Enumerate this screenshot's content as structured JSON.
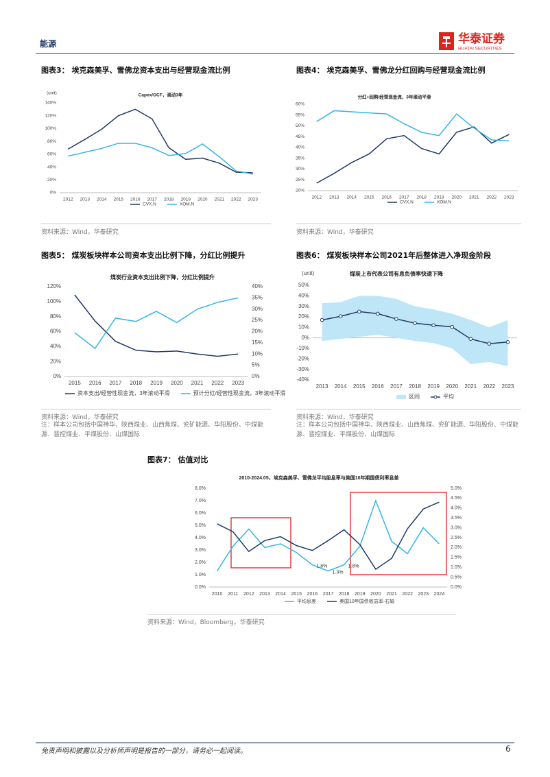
{
  "header": {
    "section": "能源",
    "logo_cn": "华泰证券",
    "logo_en": "HUATAI SECURITIES"
  },
  "figures": [
    {
      "caption": "图表3： 埃克森美孚、雪佛龙资本支出与经营现金流比例",
      "source": "资料来源：Wind，华泰研究",
      "chart": {
        "type": "line",
        "title": "Capex/OCF，滚动3年",
        "unit": "(unit)",
        "legend": "bottom",
        "categories": [
          "2012",
          "2013",
          "2014",
          "2015",
          "2016",
          "2017",
          "2018",
          "2019",
          "2020",
          "2021",
          "2022",
          "2023"
        ],
        "ylim": [
          0,
          140
        ],
        "yticks": [
          {
            "value": 0,
            "label": "0%"
          },
          {
            "value": 20,
            "label": "20%"
          },
          {
            "value": 40,
            "label": "40%"
          },
          {
            "value": 60,
            "label": "60%"
          },
          {
            "value": 80,
            "label": "80%"
          },
          {
            "value": 100,
            "label": "100%"
          },
          {
            "value": 120,
            "label": "120%"
          },
          {
            "value": 140,
            "label": "140%"
          }
        ],
        "series": [
          {
            "name": "CVX.N",
            "color": "#1f3864",
            "values": [
              68,
              83,
              99,
              120,
              130,
              115,
              70,
              52,
              54,
              46,
              32,
              31
            ]
          },
          {
            "name": "XOM.N",
            "color": "#33b5e5",
            "values": [
              57,
              63,
              69,
              77,
              77,
              70,
              58,
              61,
              76,
              56,
              34,
              29
            ]
          }
        ]
      }
    },
    {
      "caption": "图表4： 埃克森美孚、雪佛龙分红回购与经营现金流比例",
      "source": "资料来源：Wind，华泰研究",
      "chart": {
        "type": "line",
        "title": "分红+回购/经营现金流，3年滚动平滑",
        "legend": "bottom",
        "categories": [
          "2012",
          "2013",
          "2014",
          "2015",
          "2016",
          "2017",
          "2018",
          "2019",
          "2020",
          "2021",
          "2022",
          "2023"
        ],
        "ylim": [
          20,
          60
        ],
        "yticks": [
          {
            "value": 20,
            "label": "20%"
          },
          {
            "value": 25,
            "label": "25%"
          },
          {
            "value": 30,
            "label": "30%"
          },
          {
            "value": 35,
            "label": "35%"
          },
          {
            "value": 40,
            "label": "40%"
          },
          {
            "value": 45,
            "label": "45%"
          },
          {
            "value": 50,
            "label": "50%"
          },
          {
            "value": 55,
            "label": "55%"
          },
          {
            "value": 60,
            "label": "60%"
          }
        ],
        "series": [
          {
            "name": "CVX.N",
            "color": "#1f3864",
            "values": [
              23.5,
              28,
              33,
              37,
              44,
              45.5,
              39.5,
              37,
              47,
              49.5,
              42,
              46
            ]
          },
          {
            "name": "XOM.N",
            "color": "#33b5e5",
            "values": [
              52,
              57,
              56.5,
              56,
              55.5,
              51,
              47,
              45.5,
              55.5,
              49,
              43.5,
              43
            ]
          }
        ]
      }
    },
    {
      "caption": "图表5： 煤炭板块样本公司资本支出比例下降，分红比例提升",
      "source": "资料来源：Wind，华泰研究",
      "note": "注：样本公司包括中国神华、陕西煤业、山西焦煤、兖矿能源、华阳股份、中煤能源、晋控煤业、平煤股份、山煤国际",
      "chart": {
        "type": "line",
        "title": "煤炭行业资本支出比例下降，分红比例提升",
        "legend": "bottom",
        "categories": [
          "2015",
          "2016",
          "2017",
          "2018",
          "2019",
          "2020",
          "2021",
          "2022",
          "2023"
        ],
        "ylim": [
          0,
          120
        ],
        "yticks": [
          {
            "value": 0,
            "label": "0%"
          },
          {
            "value": 20,
            "label": "20%"
          },
          {
            "value": 40,
            "label": "40%"
          },
          {
            "value": 60,
            "label": "60%"
          },
          {
            "value": 80,
            "label": "80%"
          },
          {
            "value": 100,
            "label": "100%"
          },
          {
            "value": 120,
            "label": "120%"
          }
        ],
        "y2lim": [
          0,
          40
        ],
        "y2ticks": [
          {
            "value": 0,
            "label": "0%"
          },
          {
            "value": 5,
            "label": "5%"
          },
          {
            "value": 10,
            "label": "10%"
          },
          {
            "value": 15,
            "label": "15%"
          },
          {
            "value": 20,
            "label": "20%"
          },
          {
            "value": 25,
            "label": "25%"
          },
          {
            "value": 30,
            "label": "30%"
          },
          {
            "value": 35,
            "label": "35%"
          },
          {
            "value": 40,
            "label": "40%"
          }
        ],
        "series": [
          {
            "name": "资本支出/经营性现金流，3年滚动平滑",
            "color": "#1f3864",
            "values": [
              109,
              74,
              47,
              35,
              33,
              34,
              30,
              27,
              30
            ]
          },
          {
            "name": "预计分红/经营性现金流，3年滚动平滑",
            "color": "#33b5e5",
            "axis": "y2",
            "values": [
              19.5,
              12.5,
              26,
              24.5,
              29,
              24,
              30,
              33,
              35
            ]
          }
        ]
      }
    },
    {
      "caption": "图表6： 煤炭板块样本公司2021年后整体进入净现金阶段",
      "source": "资料来源：Wind，华泰研究",
      "note": "注：样本公司包括中国神华、陕西煤业、山西焦煤、兖矿能源、华阳股份、中煤能源、晋控煤业、平煤股份、山煤国际",
      "chart": {
        "type": "line",
        "title": "煤炭上市代表公司有息负债率快速下降",
        "unit": "(unit)",
        "legend": "bottom",
        "categories": [
          "2013",
          "2014",
          "2015",
          "2016",
          "2017",
          "2018",
          "2019",
          "2020",
          "2021",
          "2022",
          "2023"
        ],
        "ylim": [
          -40,
          50
        ],
        "yticks": [
          {
            "value": -40,
            "label": "-40%"
          },
          {
            "value": -30,
            "label": "-30%"
          },
          {
            "value": -20,
            "label": "-20%"
          },
          {
            "value": -10,
            "label": "-10%"
          },
          {
            "value": 0,
            "label": "0%"
          },
          {
            "value": 10,
            "label": "10%"
          },
          {
            "value": 20,
            "label": "20%"
          },
          {
            "value": 30,
            "label": "30%"
          },
          {
            "value": 40,
            "label": "40%"
          },
          {
            "value": 50,
            "label": "50%"
          }
        ],
        "series": [
          {
            "name": "区间",
            "color": "#bfe6f7",
            "type": "band",
            "upper": [
              33,
              34,
              40,
              40,
              37,
              30,
              27,
              23,
              17,
              10,
              17
            ],
            "lower": [
              -3,
              -1,
              1,
              3,
              0,
              -3,
              -5,
              -10,
              -25,
              -23,
              -27
            ]
          },
          {
            "name": "平均",
            "color": "#1f3864",
            "markers": true,
            "values": [
              17,
              20.5,
              25,
              23,
              18,
              14,
              12,
              10.5,
              -1,
              -5.5,
              -4
            ]
          }
        ]
      }
    },
    {
      "caption": "图表7： 估值对比",
      "source": "资料来源：Wind，Bloomberg，华泰研究",
      "chart": {
        "type": "line",
        "title": "2010-2024.05，埃克森美孚、雪佛龙平均股息率与美国10年期国债利率息差",
        "legend": "bottom",
        "categories": [
          "2010",
          "2011",
          "2012",
          "2013",
          "2014",
          "2015",
          "2016",
          "2017",
          "2018",
          "2019",
          "2020",
          "2021",
          "2022",
          "2023",
          "2024"
        ],
        "ylim": [
          0,
          8
        ],
        "yticks": [
          {
            "value": 0,
            "label": "0.0%"
          },
          {
            "value": 1,
            "label": "1.0%"
          },
          {
            "value": 2,
            "label": "2.0%"
          },
          {
            "value": 3,
            "label": "3.0%"
          },
          {
            "value": 4,
            "label": "4.0%"
          },
          {
            "value": 5,
            "label": "5.0%"
          },
          {
            "value": 6,
            "label": "6.0%"
          },
          {
            "value": 7,
            "label": "7.0%"
          },
          {
            "value": 8,
            "label": "8.0%"
          }
        ],
        "y2lim": [
          0,
          5
        ],
        "y2ticks": [
          {
            "value": 0,
            "label": "0.0%"
          },
          {
            "value": 0.5,
            "label": "0.5%"
          },
          {
            "value": 1,
            "label": "1.0%"
          },
          {
            "value": 1.5,
            "label": "1.5%"
          },
          {
            "value": 2,
            "label": "2.0%"
          },
          {
            "value": 2.5,
            "label": "2.5%"
          },
          {
            "value": 3,
            "label": "3.0%"
          },
          {
            "value": 3.5,
            "label": "3.5%"
          },
          {
            "value": 4,
            "label": "4.0%"
          },
          {
            "value": 4.5,
            "label": "4.5%"
          },
          {
            "value": 5,
            "label": "5.0%"
          }
        ],
        "series": [
          {
            "name": "平均息差",
            "color": "#33b5e5",
            "values": [
              1.3,
              3.3,
              4.7,
              3.2,
              3.5,
              2.8,
              1.8,
              1.3,
              1.8,
              3.3,
              7.0,
              3.7,
              2.7,
              4.8,
              3.5
            ],
            "value_labels": [
              null,
              null,
              null,
              null,
              null,
              null,
              "1.8%",
              "1.3%",
              "1.8%",
              null,
              null,
              null,
              null,
              null,
              null
            ]
          },
          {
            "name": "美国10年国债收益率-右轴",
            "color": "#1f3864",
            "axis": "y2",
            "values": [
              3.2,
              2.8,
              1.8,
              2.35,
              2.55,
              2.1,
              1.85,
              2.35,
              2.9,
              2.15,
              0.9,
              1.45,
              2.95,
              3.95,
              4.3
            ]
          }
        ]
      }
    }
  ],
  "footer": {
    "disclaimer": "免责声明和披露以及分析师声明是报告的一部分，请务必一起阅读。",
    "page": "6"
  }
}
